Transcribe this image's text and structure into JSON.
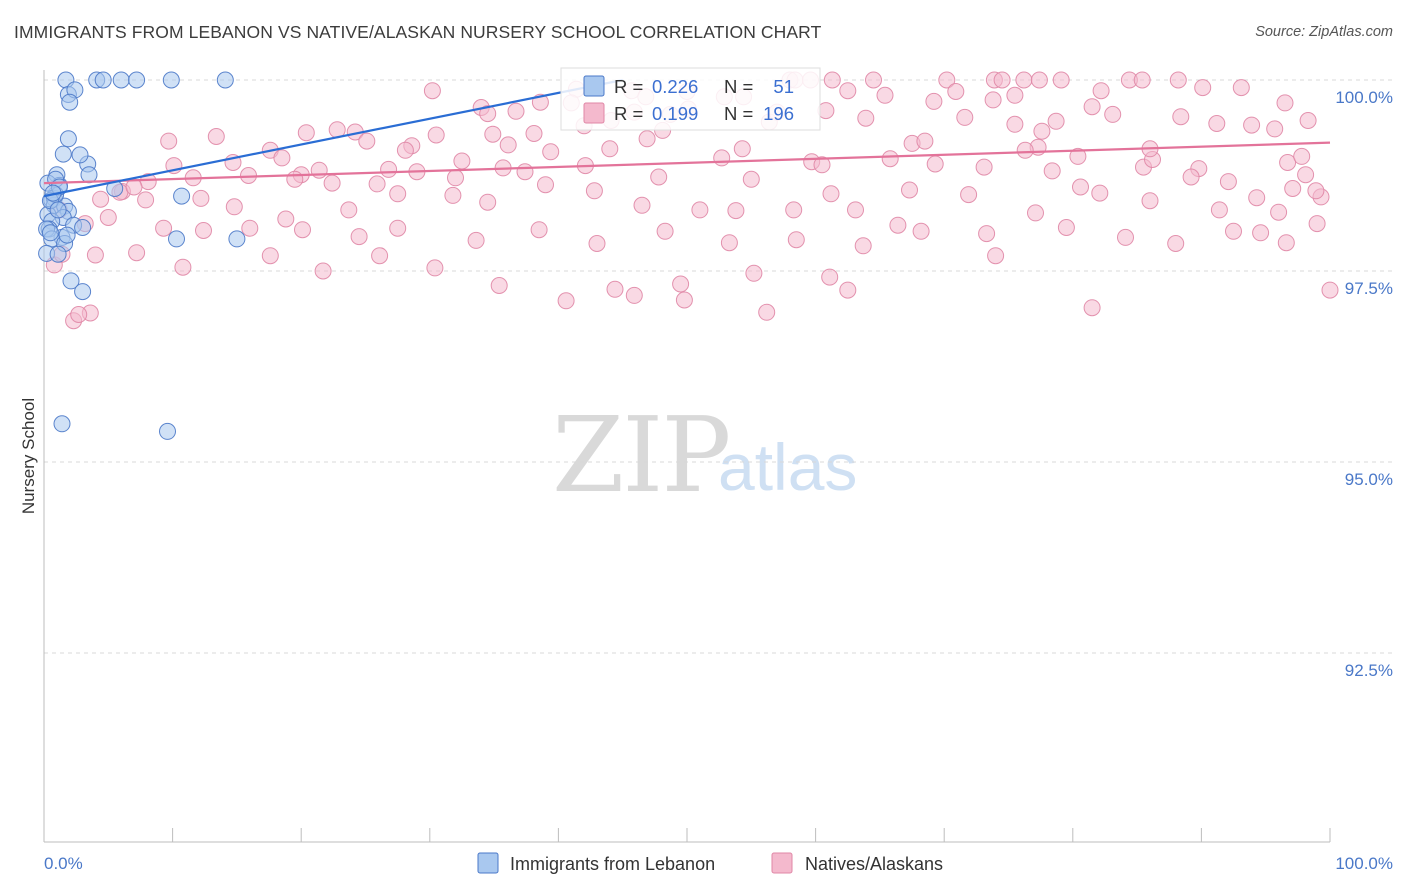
{
  "title": "IMMIGRANTS FROM LEBANON VS NATIVE/ALASKAN NURSERY SCHOOL CORRELATION CHART",
  "source": "Source: ZipAtlas.com",
  "watermark": {
    "zip": "ZIP",
    "atlas": "atlas"
  },
  "stats": {
    "r_label": "R =",
    "n_label": "N =",
    "lebanon": {
      "r": "0.226",
      "n": "51"
    },
    "natives": {
      "r": "0.199",
      "n": "196"
    }
  },
  "legend": {
    "lebanon": "Immigrants from Lebanon",
    "natives": "Natives/Alaskans"
  },
  "colors": {
    "lebanon_fill": "#a9c8ef",
    "lebanon_stroke": "#4a78c8",
    "lebanon_line": "#2a6dd4",
    "natives_fill": "#f4b9cd",
    "natives_stroke": "#e087a6",
    "natives_line": "#e3739a",
    "tick_text": "#4a78c8",
    "grid": "#d8d8d8"
  },
  "chart_data": {
    "type": "scatter",
    "ylabel": "Nursery School",
    "xlabel": "",
    "xlim": [
      0,
      100
    ],
    "ylim": [
      90.2,
      100.35
    ],
    "x_tick_labels": {
      "left": "0.0%",
      "right": "100.0%"
    },
    "y_ticks": [
      {
        "value": 100.0,
        "label": "100.0%"
      },
      {
        "value": 97.5,
        "label": "97.5%"
      },
      {
        "value": 95.0,
        "label": "95.0%"
      },
      {
        "value": 92.5,
        "label": "92.5%"
      }
    ],
    "series": [
      {
        "name": "Immigrants from Lebanon",
        "r": 0.226,
        "n": 51,
        "trend": {
          "x": [
            0.0,
            45.0
          ],
          "y": [
            98.48,
            100.0
          ]
        },
        "points": [
          [
            1.7,
            100.0
          ],
          [
            4.1,
            100.0
          ],
          [
            4.6,
            100.0
          ],
          [
            6.0,
            100.0
          ],
          [
            7.2,
            100.0
          ],
          [
            9.9,
            100.0
          ],
          [
            14.1,
            100.0
          ],
          [
            1.9,
            99.81
          ],
          [
            2.4,
            99.87
          ],
          [
            2.0,
            99.71
          ],
          [
            1.9,
            99.23
          ],
          [
            1.5,
            99.03
          ],
          [
            3.4,
            98.9
          ],
          [
            3.5,
            98.76
          ],
          [
            1.0,
            98.76
          ],
          [
            1.2,
            98.62
          ],
          [
            5.5,
            98.58
          ],
          [
            10.7,
            98.48
          ],
          [
            0.6,
            98.43
          ],
          [
            0.8,
            98.45
          ],
          [
            0.8,
            98.36
          ],
          [
            1.6,
            98.35
          ],
          [
            1.9,
            98.28
          ],
          [
            0.3,
            98.24
          ],
          [
            1.5,
            98.2
          ],
          [
            0.6,
            98.15
          ],
          [
            2.3,
            98.1
          ],
          [
            3.0,
            98.07
          ],
          [
            0.4,
            98.05
          ],
          [
            0.2,
            98.05
          ],
          [
            1.4,
            97.94
          ],
          [
            0.6,
            97.92
          ],
          [
            1.6,
            97.86
          ],
          [
            0.2,
            97.73
          ],
          [
            1.1,
            97.72
          ],
          [
            10.3,
            97.92
          ],
          [
            15.0,
            97.92
          ],
          [
            2.1,
            97.37
          ],
          [
            3.0,
            97.23
          ],
          [
            1.4,
            95.5
          ],
          [
            9.6,
            95.4
          ],
          [
            0.5,
            98.0
          ],
          [
            0.9,
            98.5
          ],
          [
            0.5,
            98.42
          ],
          [
            1.1,
            98.3
          ],
          [
            1.8,
            97.97
          ],
          [
            0.3,
            98.65
          ],
          [
            0.9,
            98.7
          ],
          [
            1.2,
            98.6
          ],
          [
            2.8,
            99.02
          ],
          [
            0.7,
            98.52
          ]
        ]
      },
      {
        "name": "Natives/Alaskans",
        "r": 0.199,
        "n": 196,
        "trend": {
          "x": [
            0.0,
            100.0
          ],
          "y": [
            98.65,
            99.18
          ]
        },
        "points": [
          [
            58.0,
            100.0
          ],
          [
            58.4,
            100.0
          ],
          [
            59.6,
            100.0
          ],
          [
            61.3,
            100.0
          ],
          [
            64.5,
            100.0
          ],
          [
            70.2,
            100.0
          ],
          [
            73.9,
            100.0
          ],
          [
            74.5,
            100.0
          ],
          [
            76.2,
            100.0
          ],
          [
            77.4,
            100.0
          ],
          [
            79.1,
            100.0
          ],
          [
            84.4,
            100.0
          ],
          [
            85.4,
            100.0
          ],
          [
            88.2,
            100.0
          ],
          [
            41.4,
            99.88
          ],
          [
            45.7,
            99.86
          ],
          [
            46.8,
            99.78
          ],
          [
            50.0,
            99.85
          ],
          [
            54.4,
            99.78
          ],
          [
            62.5,
            99.86
          ],
          [
            65.4,
            99.8
          ],
          [
            70.9,
            99.85
          ],
          [
            73.8,
            99.74
          ],
          [
            75.5,
            99.8
          ],
          [
            82.2,
            99.86
          ],
          [
            90.1,
            99.9
          ],
          [
            93.1,
            99.9
          ],
          [
            30.2,
            99.86
          ],
          [
            34.0,
            99.64
          ],
          [
            34.5,
            99.56
          ],
          [
            36.7,
            99.59
          ],
          [
            38.6,
            99.71
          ],
          [
            41.0,
            99.7
          ],
          [
            44.1,
            99.47
          ],
          [
            45.9,
            99.58
          ],
          [
            48.7,
            99.55
          ],
          [
            50.1,
            99.62
          ],
          [
            52.9,
            99.78
          ],
          [
            56.4,
            99.45
          ],
          [
            60.8,
            99.6
          ],
          [
            63.9,
            99.5
          ],
          [
            69.2,
            99.72
          ],
          [
            71.6,
            99.51
          ],
          [
            75.5,
            99.42
          ],
          [
            77.6,
            99.33
          ],
          [
            78.7,
            99.46
          ],
          [
            81.5,
            99.65
          ],
          [
            83.1,
            99.55
          ],
          [
            88.4,
            99.52
          ],
          [
            91.2,
            99.43
          ],
          [
            93.9,
            99.41
          ],
          [
            95.7,
            99.36
          ],
          [
            96.5,
            99.7
          ],
          [
            98.3,
            99.47
          ],
          [
            24.2,
            99.32
          ],
          [
            28.6,
            99.14
          ],
          [
            30.5,
            99.28
          ],
          [
            34.9,
            99.29
          ],
          [
            38.1,
            99.3
          ],
          [
            42.0,
            99.4
          ],
          [
            28.1,
            99.08
          ],
          [
            22.8,
            99.35
          ],
          [
            20.4,
            99.31
          ],
          [
            17.6,
            99.08
          ],
          [
            13.4,
            99.26
          ],
          [
            9.7,
            99.2
          ],
          [
            14.7,
            98.92
          ],
          [
            18.5,
            98.98
          ],
          [
            20.0,
            98.76
          ],
          [
            22.4,
            98.65
          ],
          [
            25.9,
            98.64
          ],
          [
            26.8,
            98.83
          ],
          [
            32.5,
            98.94
          ],
          [
            35.7,
            98.85
          ],
          [
            37.4,
            98.8
          ],
          [
            42.1,
            98.88
          ],
          [
            46.9,
            99.23
          ],
          [
            47.8,
            98.73
          ],
          [
            52.7,
            98.98
          ],
          [
            59.7,
            98.93
          ],
          [
            60.5,
            98.89
          ],
          [
            65.8,
            98.97
          ],
          [
            69.3,
            98.9
          ],
          [
            73.1,
            98.86
          ],
          [
            78.4,
            98.81
          ],
          [
            80.4,
            99.0
          ],
          [
            85.5,
            98.86
          ],
          [
            89.8,
            98.84
          ],
          [
            96.7,
            98.92
          ],
          [
            98.1,
            98.76
          ],
          [
            99.3,
            98.47
          ],
          [
            6.1,
            98.54
          ],
          [
            8.1,
            98.67
          ],
          [
            10.1,
            98.88
          ],
          [
            12.2,
            98.45
          ],
          [
            15.9,
            98.75
          ],
          [
            19.5,
            98.7
          ],
          [
            21.4,
            98.82
          ],
          [
            23.7,
            98.3
          ],
          [
            27.5,
            98.51
          ],
          [
            31.8,
            98.49
          ],
          [
            34.5,
            98.4
          ],
          [
            39.0,
            98.63
          ],
          [
            42.8,
            98.55
          ],
          [
            46.5,
            98.36
          ],
          [
            53.8,
            98.29
          ],
          [
            58.3,
            98.3
          ],
          [
            61.2,
            98.51
          ],
          [
            63.1,
            98.3
          ],
          [
            67.3,
            98.56
          ],
          [
            71.9,
            98.5
          ],
          [
            77.1,
            98.26
          ],
          [
            82.1,
            98.52
          ],
          [
            86.0,
            98.42
          ],
          [
            91.4,
            98.3
          ],
          [
            94.3,
            98.46
          ],
          [
            96.0,
            98.27
          ],
          [
            98.9,
            98.55
          ],
          [
            4.4,
            98.44
          ],
          [
            7.9,
            98.43
          ],
          [
            9.3,
            98.06
          ],
          [
            12.4,
            98.03
          ],
          [
            16.0,
            98.06
          ],
          [
            20.1,
            98.04
          ],
          [
            24.5,
            97.95
          ],
          [
            27.5,
            98.06
          ],
          [
            33.6,
            97.9
          ],
          [
            38.5,
            98.04
          ],
          [
            43.0,
            97.86
          ],
          [
            48.3,
            98.02
          ],
          [
            53.3,
            97.87
          ],
          [
            58.5,
            97.91
          ],
          [
            63.7,
            97.83
          ],
          [
            68.2,
            98.02
          ],
          [
            73.3,
            97.99
          ],
          [
            79.5,
            98.07
          ],
          [
            84.1,
            97.94
          ],
          [
            88.0,
            97.86
          ],
          [
            92.5,
            98.02
          ],
          [
            96.6,
            97.87
          ],
          [
            4.0,
            97.71
          ],
          [
            7.2,
            97.74
          ],
          [
            10.8,
            97.55
          ],
          [
            17.6,
            97.7
          ],
          [
            21.7,
            97.5
          ],
          [
            26.1,
            97.7
          ],
          [
            30.4,
            97.54
          ],
          [
            35.4,
            97.31
          ],
          [
            40.6,
            97.11
          ],
          [
            44.4,
            97.26
          ],
          [
            49.5,
            97.33
          ],
          [
            55.2,
            97.47
          ],
          [
            61.1,
            97.42
          ],
          [
            2.3,
            96.85
          ],
          [
            3.6,
            96.95
          ],
          [
            45.9,
            97.18
          ],
          [
            49.8,
            97.12
          ],
          [
            56.2,
            96.96
          ],
          [
            0.8,
            97.58
          ],
          [
            1.4,
            97.72
          ],
          [
            81.5,
            97.02
          ],
          [
            74.0,
            97.7
          ],
          [
            62.5,
            97.25
          ],
          [
            5.0,
            98.2
          ],
          [
            3.2,
            98.12
          ],
          [
            11.6,
            98.72
          ],
          [
            14.8,
            98.34
          ],
          [
            32.0,
            98.72
          ],
          [
            39.4,
            99.06
          ],
          [
            44.0,
            99.1
          ],
          [
            54.3,
            99.1
          ],
          [
            1.2,
            98.3
          ],
          [
            2.7,
            96.93
          ],
          [
            5.9,
            98.53
          ],
          [
            67.5,
            99.17
          ],
          [
            77.3,
            99.12
          ],
          [
            86.2,
            98.96
          ],
          [
            92.1,
            98.67
          ],
          [
            97.1,
            98.58
          ],
          [
            99.0,
            98.12
          ],
          [
            100.0,
            97.25
          ],
          [
            55.0,
            98.7
          ],
          [
            7.0,
            98.6
          ],
          [
            18.8,
            98.18
          ],
          [
            29.0,
            98.8
          ],
          [
            51.0,
            98.3
          ],
          [
            66.4,
            98.1
          ],
          [
            80.6,
            98.6
          ],
          [
            89.2,
            98.73
          ],
          [
            94.6,
            98.0
          ],
          [
            25.1,
            99.2
          ],
          [
            36.1,
            99.15
          ],
          [
            48.1,
            99.34
          ],
          [
            57.0,
            99.58
          ],
          [
            68.5,
            99.2
          ],
          [
            76.3,
            99.08
          ],
          [
            86.0,
            99.1
          ],
          [
            97.8,
            99.0
          ]
        ]
      }
    ]
  }
}
